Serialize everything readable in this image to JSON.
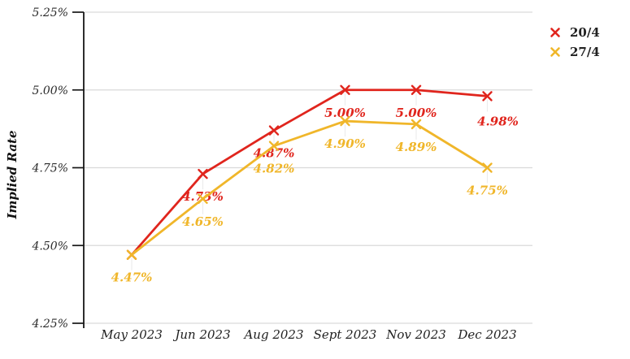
{
  "chart_data": {
    "type": "line",
    "title": "",
    "xlabel": "",
    "ylabel": "Implied Rate",
    "categories": [
      "May 2023",
      "Jun 2023",
      "Aug 2023",
      "Sept 2023",
      "Nov 2023",
      "Dec 2023"
    ],
    "y_ticks": [
      "5.25%",
      "5.00%",
      "4.75%",
      "4.50%",
      "4.25%"
    ],
    "y_tick_values": [
      5.25,
      5.0,
      4.75,
      4.5,
      4.25
    ],
    "ylim": [
      4.25,
      5.25
    ],
    "grid": "horizontal",
    "legend_position": "top-right",
    "marker": "x",
    "series": [
      {
        "name": "20/4",
        "color": "#e0251d",
        "values": [
          4.47,
          4.73,
          4.87,
          5.0,
          5.0,
          4.98
        ],
        "labels": [
          "",
          "4.73%",
          "4.87%",
          "5.00%",
          "5.00%",
          "4.98%"
        ]
      },
      {
        "name": "27/4",
        "color": "#f0b62a",
        "values": [
          4.47,
          4.65,
          4.82,
          4.9,
          4.89,
          4.75
        ],
        "labels": [
          "4.47%",
          "4.65%",
          "4.82%",
          "4.90%",
          "4.89%",
          "4.75%"
        ]
      }
    ]
  }
}
